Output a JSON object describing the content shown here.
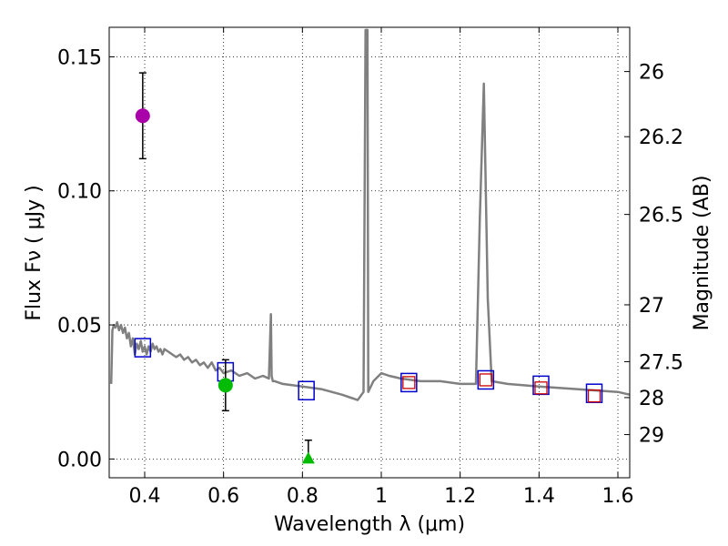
{
  "chart_data": {
    "type": "scatter",
    "xlabel": "Wavelength  λ (μm)",
    "ylabel": "Flux  Fν  ( μJy )",
    "ylabel_right": "Magnitude (AB)",
    "xlim": [
      0.31,
      1.63
    ],
    "ylim": [
      -0.007,
      0.161
    ],
    "xticks": [
      0.4,
      0.6,
      0.8,
      1.0,
      1.2,
      1.4,
      1.6
    ],
    "xtick_labels": [
      "0.4",
      "0.6",
      "0.8",
      "1",
      "1.2",
      "1.4",
      "1.6"
    ],
    "yticks": [
      0.0,
      0.05,
      0.1,
      0.15
    ],
    "ytick_labels": [
      "0.00",
      "0.05",
      "0.10",
      "0.15"
    ],
    "right_ticks": [
      {
        "label": "26",
        "flux": 0.1445
      },
      {
        "label": "26.2",
        "flux": 0.1202
      },
      {
        "label": "26.5",
        "flux": 0.0912
      },
      {
        "label": "27",
        "flux": 0.0575
      },
      {
        "label": "27.5",
        "flux": 0.0363
      },
      {
        "label": "28",
        "flux": 0.0229
      },
      {
        "label": "29",
        "flux": 0.0091
      }
    ],
    "grid": true,
    "colors": {
      "model": "#808080",
      "model_box": "#0000cc",
      "overlay_box": "#cc0000",
      "magenta": "#aa00aa",
      "green": "#00bb00",
      "errorbar": "#000000"
    },
    "model_spectrum": {
      "x": [
        0.315,
        0.318,
        0.322,
        0.326,
        0.33,
        0.335,
        0.34,
        0.345,
        0.35,
        0.355,
        0.36,
        0.365,
        0.37,
        0.375,
        0.38,
        0.385,
        0.39,
        0.395,
        0.4,
        0.405,
        0.41,
        0.415,
        0.42,
        0.425,
        0.43,
        0.435,
        0.44,
        0.445,
        0.45,
        0.46,
        0.47,
        0.48,
        0.49,
        0.5,
        0.51,
        0.52,
        0.53,
        0.54,
        0.55,
        0.56,
        0.57,
        0.58,
        0.59,
        0.6,
        0.62,
        0.64,
        0.66,
        0.68,
        0.7,
        0.715,
        0.72,
        0.722,
        0.725,
        0.73,
        0.75,
        0.8,
        0.85,
        0.9,
        0.94,
        0.955,
        0.96,
        0.963,
        0.965,
        0.967,
        0.97,
        0.98,
        1.0,
        1.02,
        1.05,
        1.1,
        1.15,
        1.2,
        1.24,
        1.25,
        1.26,
        1.27,
        1.28,
        1.32,
        1.4,
        1.5,
        1.6,
        1.63
      ],
      "y": [
        0.028,
        0.048,
        0.05,
        0.049,
        0.051,
        0.048,
        0.05,
        0.047,
        0.049,
        0.045,
        0.047,
        0.042,
        0.045,
        0.039,
        0.043,
        0.041,
        0.044,
        0.04,
        0.042,
        0.039,
        0.042,
        0.04,
        0.043,
        0.041,
        0.042,
        0.04,
        0.041,
        0.039,
        0.041,
        0.04,
        0.039,
        0.038,
        0.039,
        0.037,
        0.038,
        0.036,
        0.037,
        0.035,
        0.036,
        0.034,
        0.036,
        0.033,
        0.034,
        0.032,
        0.033,
        0.031,
        0.032,
        0.03,
        0.031,
        0.03,
        0.054,
        0.031,
        0.029,
        0.029,
        0.028,
        0.027,
        0.026,
        0.024,
        0.022,
        0.025,
        0.16,
        0.16,
        0.16,
        0.025,
        0.026,
        0.029,
        0.032,
        0.031,
        0.03,
        0.029,
        0.029,
        0.028,
        0.028,
        0.09,
        0.14,
        0.06,
        0.029,
        0.028,
        0.027,
        0.026,
        0.025,
        0.024
      ]
    },
    "series": [
      {
        "name": "model-synthetic-photometry",
        "marker": "square",
        "x": [
          0.395,
          0.605,
          0.81,
          1.07,
          1.265,
          1.405,
          1.54
        ],
        "y": [
          0.0415,
          0.0325,
          0.0255,
          0.0285,
          0.0295,
          0.0275,
          0.0245
        ]
      },
      {
        "name": "model-synthetic-photometry-overlay",
        "marker": "square-small",
        "x": [
          1.07,
          1.265,
          1.405,
          1.54
        ],
        "y": [
          0.0285,
          0.0295,
          0.0265,
          0.0235
        ]
      },
      {
        "name": "observed-magenta",
        "marker": "circle",
        "x": [
          0.395
        ],
        "y": [
          0.128
        ],
        "yerr": [
          0.016
        ]
      },
      {
        "name": "observed-green",
        "marker": "circle",
        "x": [
          0.605
        ],
        "y": [
          0.0275
        ],
        "yerr": [
          0.0095
        ]
      },
      {
        "name": "upper-limit-green",
        "marker": "triangle",
        "x": [
          0.815
        ],
        "y": [
          0.0
        ],
        "yerr": [
          0.007
        ]
      }
    ]
  }
}
